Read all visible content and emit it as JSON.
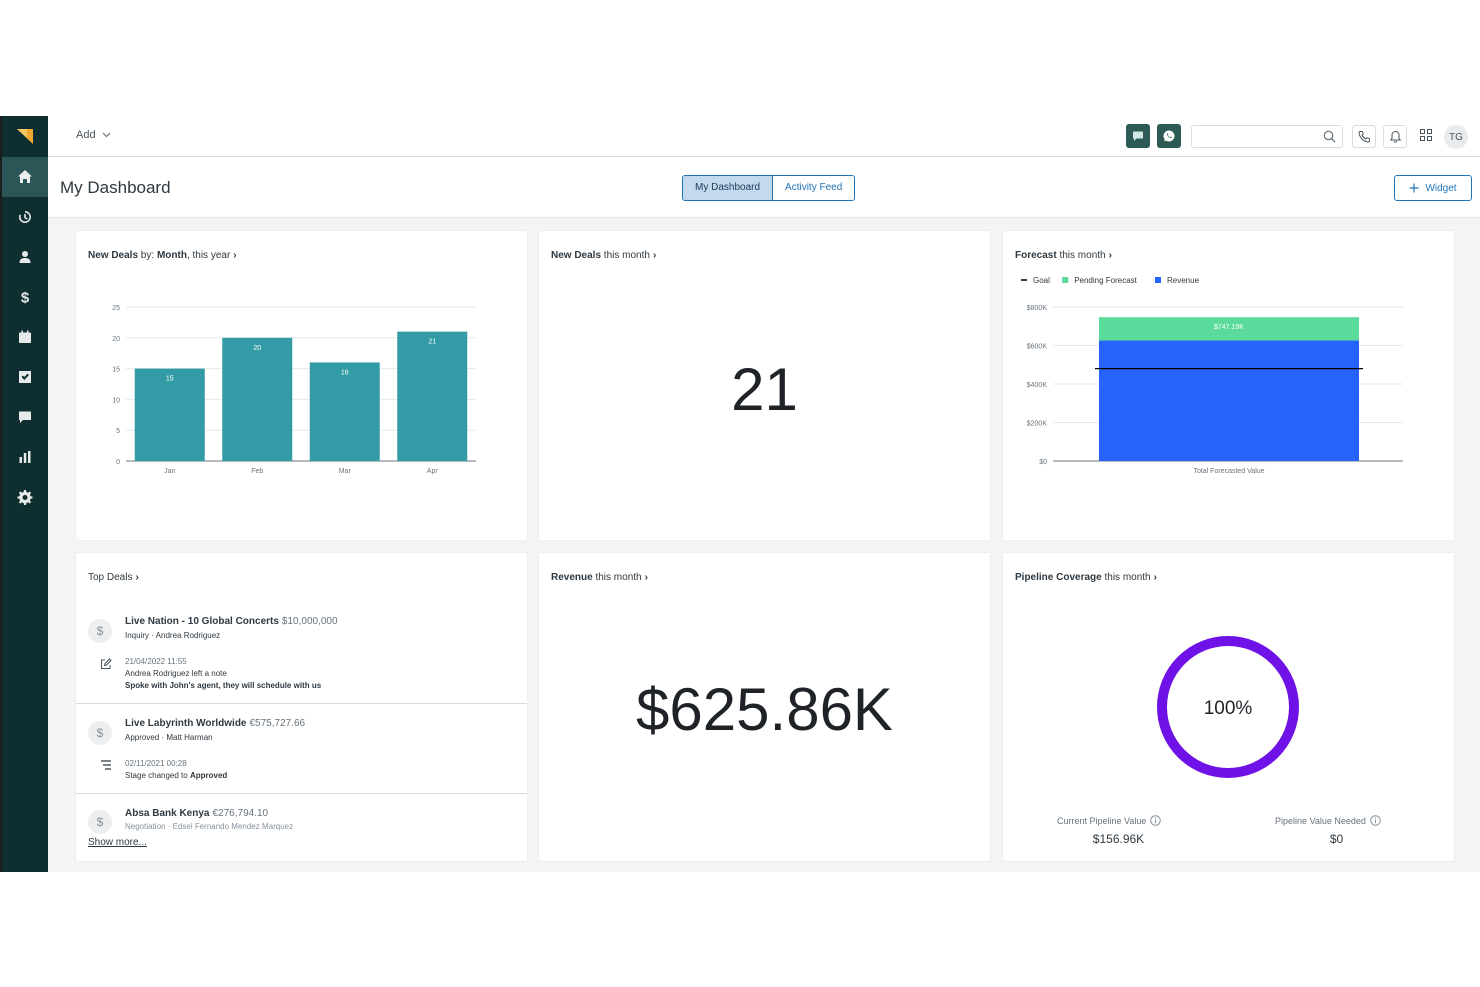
{
  "topbar": {
    "add_label": "Add",
    "search_placeholder": "",
    "avatar_initials": "TG"
  },
  "header": {
    "title": "My Dashboard",
    "tabs": [
      {
        "label": "My Dashboard",
        "active": true
      },
      {
        "label": "Activity Feed",
        "active": false
      }
    ],
    "widget_label": "Widget"
  },
  "sidebar": {
    "items": [
      "home-icon",
      "activity-icon",
      "contact-icon",
      "dollar-icon",
      "calendar-icon",
      "tasks-icon",
      "chat-icon",
      "reports-icon",
      "settings-icon"
    ],
    "active_index": 0
  },
  "cards": {
    "new_deals_chart": {
      "title_bold": "New Deals",
      "title_mid": " by: ",
      "title_bold2": "Month",
      "title_rest": ", this year"
    },
    "new_deals_month": {
      "title_bold": "New Deals",
      "title_rest": " this month",
      "value": "21"
    },
    "forecast": {
      "title_bold": "Forecast",
      "title_rest": " this month"
    },
    "top_deals": {
      "title": "Top Deals",
      "deals": [
        {
          "name": "Live Nation - 10 Global Concerts",
          "amount": "$10,000,000",
          "sub": "Inquiry · Andrea Rodriguez",
          "activity": {
            "time": "21/04/2022 11:55",
            "line1": "Andrea Rodriguez left a note",
            "line2": "Spoke with John's agent, they will schedule with us"
          }
        },
        {
          "name": "Live Labyrinth Worldwide",
          "amount": "€575,727.66",
          "sub": "Approved · Matt Harman",
          "activity": {
            "time": "02/11/2021 00:28",
            "line1_pre": "Stage changed to ",
            "line1_bold": "Approved"
          }
        },
        {
          "name": "Absa Bank Kenya",
          "amount": "€276,794.10",
          "sub": "Negotiation · Edsel Fernando Mendez Marquez"
        }
      ],
      "show_more": "Show more..."
    },
    "revenue": {
      "title_bold": "Revenue",
      "title_rest": " this month",
      "value": "$625.86K"
    },
    "pipeline": {
      "title_bold": "Pipeline Coverage",
      "title_rest": " this month",
      "percent": "100%",
      "coverage_fraction": 1.0,
      "current_label": "Current Pipeline Value",
      "current_value": "$156.96K",
      "needed_label": "Pipeline Value Needed",
      "needed_value": "$0"
    }
  },
  "colors": {
    "sidebar_bg": "#0f2e30",
    "bar_teal": "#339ba5",
    "forecast_pending": "#5bdb9b",
    "forecast_revenue": "#2563fa",
    "pipeline_ring": "#6f12e8",
    "accent_blue": "#1f73b7"
  },
  "chart_data": [
    {
      "type": "bar",
      "categories": [
        "Jan",
        "Feb",
        "Mar",
        "Apr"
      ],
      "values": [
        15,
        20,
        16,
        21
      ],
      "value_labels": [
        "15",
        "20",
        "16",
        "21"
      ],
      "yticks": [
        "0",
        "5",
        "10",
        "15",
        "20",
        "25"
      ],
      "ylim": [
        0,
        25
      ],
      "grid": true
    },
    {
      "type": "bar",
      "stacked": true,
      "categories": [
        "Total Forecasted Value"
      ],
      "legend": [
        {
          "name": "Goal",
          "kind": "line",
          "color": "#000000"
        },
        {
          "name": "Pending Forecast",
          "color": "#5bdb9b"
        },
        {
          "name": "Revenue",
          "color": "#2563fa"
        }
      ],
      "series": [
        {
          "name": "Revenue",
          "values": [
            625.86
          ]
        },
        {
          "name": "Pending Forecast",
          "values": [
            121.33
          ]
        }
      ],
      "goal": 480,
      "total_label": "$747.19K",
      "yticks": [
        "$0",
        "$200K",
        "$400K",
        "$600K",
        "$800K"
      ],
      "ylim": [
        0,
        800
      ],
      "legend_position": "top-left",
      "grid": true
    }
  ]
}
